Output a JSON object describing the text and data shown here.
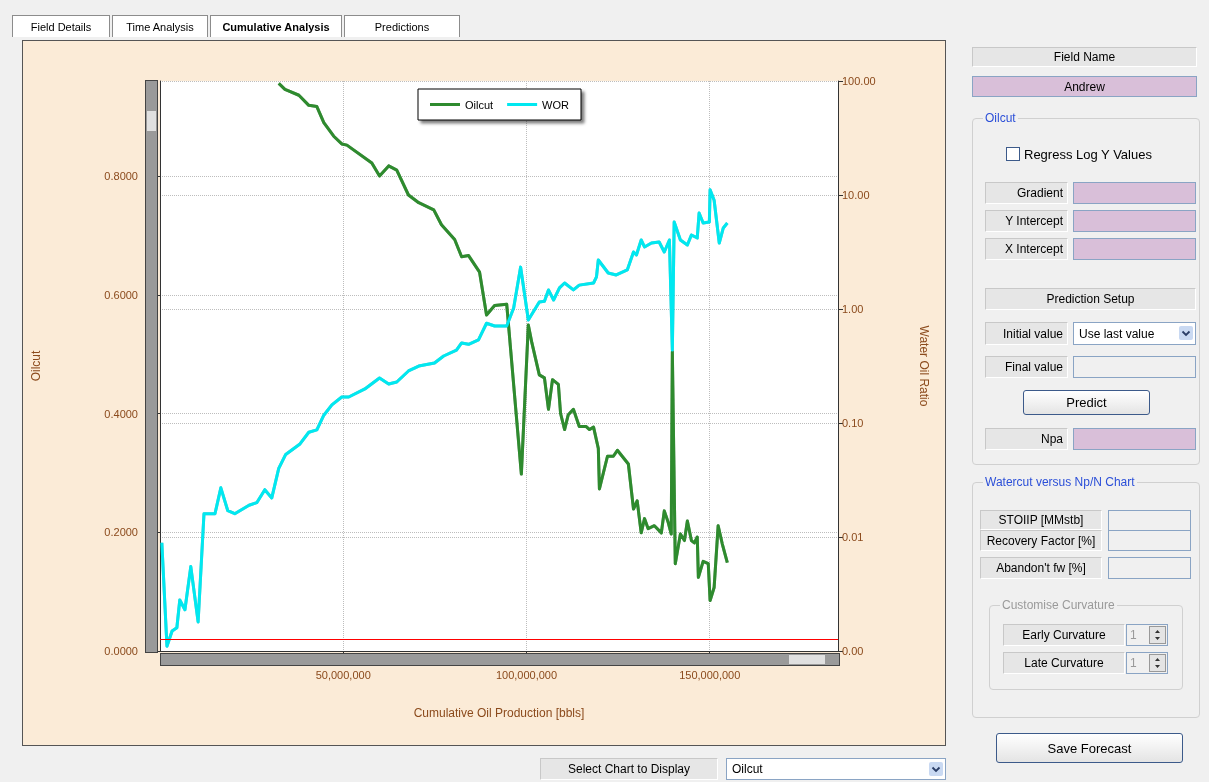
{
  "chart_data": [
    {
      "type": "line",
      "xlabel": "Cumulative Oil Production [bbls]",
      "ylabel": "Oilcut",
      "y2label": "Water Oil Ratio",
      "xlim": [
        0,
        185000000
      ],
      "xticks": [
        {
          "value": 50000000,
          "label": "50,000,000"
        },
        {
          "value": 100000000,
          "label": "100,000,000"
        },
        {
          "value": 150000000,
          "label": "150,000,000"
        }
      ],
      "ylim": [
        0,
        0.96
      ],
      "yticks": [
        {
          "value": 0,
          "label": "0.0000"
        },
        {
          "value": 0.2,
          "label": "0.2000"
        },
        {
          "value": 0.4,
          "label": "0.4000"
        },
        {
          "value": 0.6,
          "label": "0.6000"
        },
        {
          "value": 0.8,
          "label": "0.8000"
        }
      ],
      "y2lim": [
        0.001,
        100
      ],
      "y2ticks": [
        {
          "value": 0.001,
          "label": "0.00"
        },
        {
          "value": 0.01,
          "label": "0.01"
        },
        {
          "value": 0.1,
          "label": "0.10"
        },
        {
          "value": 1,
          "label": "1.00"
        },
        {
          "value": 10,
          "label": "10.00"
        },
        {
          "value": 100,
          "label": "100.00"
        }
      ],
      "log": "y2",
      "grid": true,
      "legend": "top",
      "ref_lines": [
        {
          "axis": "y",
          "value": 0.017,
          "color": "#ff0000"
        }
      ],
      "series": [
        {
          "name": "Oilcut",
          "color": "#2e8b2e",
          "x": [
            32400000,
            34100000,
            37900000,
            40600000,
            42800000,
            44700000,
            47400000,
            49600000,
            51000000,
            57800000,
            59900000,
            62400000,
            64600000,
            67800000,
            70600000,
            74700000,
            76800000,
            80400000,
            82300000,
            84200000,
            87200000,
            89100000,
            91300000,
            94600000,
            95100000,
            98600000,
            100500000,
            101400000,
            103500000,
            104900000,
            106000000,
            107100000,
            108700000,
            109300000,
            110400000,
            111400000,
            112800000,
            114400000,
            116300000,
            117200000,
            118300000,
            119600000,
            119900000,
            122100000,
            123700000,
            124800000,
            127800000,
            129200000,
            130200000,
            131300000,
            132200000,
            133200000,
            134900000,
            136800000,
            137600000,
            138700000,
            139500000,
            139800000,
            140600000,
            142000000,
            143100000,
            143900000,
            145000000,
            145800000,
            146600000,
            146900000,
            148200000,
            149600000,
            150100000,
            151200000,
            152300000,
            153400000,
            154800000
          ],
          "values": [
            0.956,
            0.946,
            0.936,
            0.919,
            0.917,
            0.89,
            0.867,
            0.854,
            0.852,
            0.822,
            0.8,
            0.817,
            0.81,
            0.768,
            0.755,
            0.743,
            0.718,
            0.693,
            0.664,
            0.666,
            0.638,
            0.566,
            0.582,
            0.584,
            0.549,
            0.298,
            0.549,
            0.521,
            0.465,
            0.46,
            0.407,
            0.457,
            0.449,
            0.4,
            0.373,
            0.398,
            0.407,
            0.378,
            0.378,
            0.373,
            0.377,
            0.341,
            0.273,
            0.328,
            0.328,
            0.338,
            0.315,
            0.239,
            0.253,
            0.199,
            0.223,
            0.206,
            0.211,
            0.199,
            0.236,
            0.216,
            0.197,
            0.504,
            0.147,
            0.197,
            0.186,
            0.219,
            0.186,
            0.182,
            0.192,
            0.124,
            0.151,
            0.147,
            0.085,
            0.107,
            0.211,
            0.181,
            0.149
          ]
        },
        {
          "name": "WOR",
          "color": "#00e8f0",
          "axis": "y2",
          "x": [
            500000,
            1900000,
            3300000,
            4600000,
            5400000,
            6800000,
            8400000,
            10400000,
            12000000,
            15000000,
            16600000,
            18500000,
            20400000,
            24300000,
            26400000,
            28600000,
            30500000,
            32400000,
            34300000,
            38100000,
            40600000,
            42800000,
            44700000,
            46900000,
            49600000,
            51500000,
            55900000,
            59900000,
            62400000,
            64600000,
            67800000,
            70600000,
            74900000,
            77400000,
            80900000,
            82300000,
            84200000,
            86900000,
            89100000,
            91300000,
            94600000,
            96500000,
            98400000,
            100500000,
            103500000,
            104900000,
            106000000,
            107400000,
            109000000,
            110400000,
            112800000,
            114400000,
            118300000,
            119100000,
            119600000,
            122300000,
            124500000,
            127500000,
            129200000,
            130000000,
            131300000,
            132200000,
            134100000,
            136200000,
            137600000,
            139000000,
            139800000,
            140300000,
            142000000,
            143900000,
            145000000,
            146600000,
            147100000,
            148200000,
            149900000,
            150100000,
            151200000,
            152600000,
            153700000,
            154800000
          ],
          "values": [
            0.0089,
            0.0011,
            0.0015,
            0.0016,
            0.0028,
            0.0023,
            0.0055,
            0.0018,
            0.016,
            0.016,
            0.027,
            0.017,
            0.016,
            0.019,
            0.02,
            0.026,
            0.022,
            0.04,
            0.053,
            0.065,
            0.083,
            0.087,
            0.117,
            0.144,
            0.169,
            0.169,
            0.199,
            0.248,
            0.22,
            0.229,
            0.286,
            0.316,
            0.336,
            0.387,
            0.436,
            0.504,
            0.49,
            0.535,
            0.75,
            0.71,
            0.71,
            1.02,
            2.33,
            0.8,
            1.15,
            1.17,
            1.47,
            1.2,
            1.53,
            1.69,
            1.47,
            1.62,
            1.69,
            1.91,
            2.69,
            2.07,
            1.99,
            2.2,
            3.16,
            2.98,
            4.03,
            3.5,
            3.79,
            3.87,
            3.16,
            4.03,
            0.436,
            5.8,
            4.03,
            3.64,
            4.46,
            4.2,
            6.95,
            5.68,
            5.8,
            11.1,
            9.0,
            3.79,
            5.14,
            5.68
          ]
        }
      ]
    },
    {
      "type": "other",
      "annotations": [
        "Field Details",
        "Time Analysis",
        "Cumulative Analysis",
        "Predictions",
        "Field Name",
        "Andrew",
        "Oilcut",
        "Regress Log Y Values",
        "Gradient",
        "Y Intercept",
        "X Intercept",
        "Prediction Setup",
        "Initial value",
        "Use last value",
        "Final value",
        "Predict",
        "Npa",
        "Watercut versus Np/N Chart",
        "STOIIP [MMstb]",
        "Recovery Factor [%]",
        "Abandon't fw [%]",
        "Customise Curvature",
        "Early Curvature",
        "1",
        "Late Curvature",
        "1",
        "Save Forecast",
        "Select Chart to Display",
        "Oilcut"
      ]
    }
  ]
}
